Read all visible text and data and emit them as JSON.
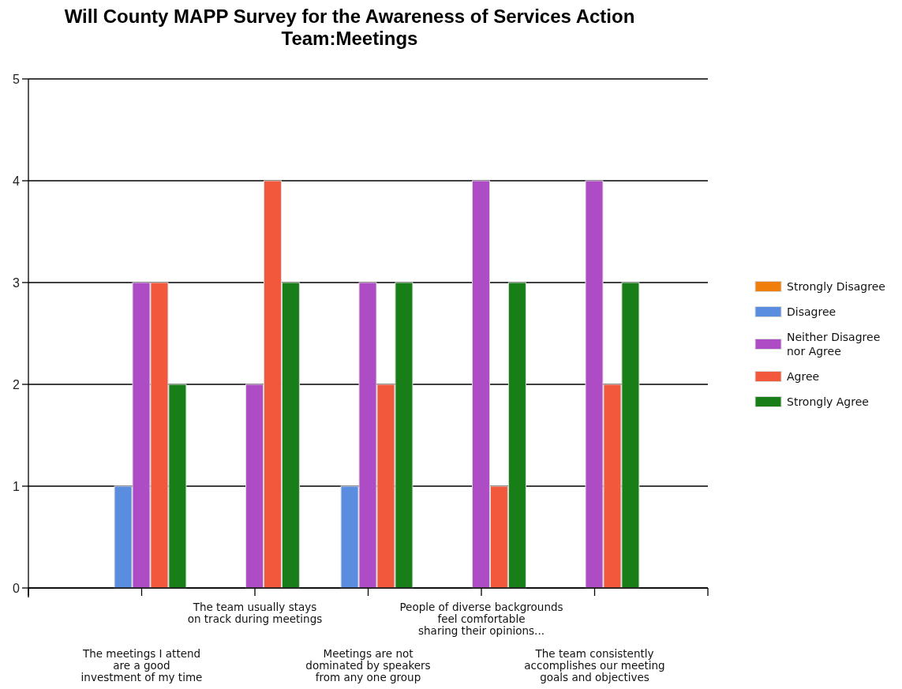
{
  "chart_data": {
    "type": "bar",
    "title": "Will County MAPP Survey for the Awareness of Services Action Team:Meetings",
    "categories": [
      "The meetings I attend\nare a good\ninvestment of my time",
      "The team usually stays\non track during meetings",
      "Meetings are not\ndominated by speakers\nfrom any one group",
      "People of diverse backgrounds\nfeel comfortable\nsharing their opinions...",
      "The team consistently\naccomplishes our meeting\ngoals and objectives"
    ],
    "series": [
      {
        "name": "Strongly Disagree",
        "color": "#ef7f0a",
        "values": [
          0,
          0,
          0,
          0,
          0
        ]
      },
      {
        "name": "Disagree",
        "color": "#5a8de0",
        "values": [
          1,
          0,
          1,
          0,
          0
        ]
      },
      {
        "name": "Neither Disagree nor Agree",
        "color": "#ae4cc6",
        "values": [
          3,
          2,
          3,
          4,
          4
        ]
      },
      {
        "name": "Agree",
        "color": "#f2583c",
        "values": [
          3,
          4,
          2,
          1,
          2
        ]
      },
      {
        "name": "Strongly Agree",
        "color": "#187e18",
        "values": [
          2,
          3,
          3,
          3,
          3
        ]
      }
    ],
    "ylim": [
      0,
      5
    ],
    "yticks": [
      0,
      1,
      2,
      3,
      4,
      5
    ],
    "grid": "y",
    "legend": "right"
  }
}
